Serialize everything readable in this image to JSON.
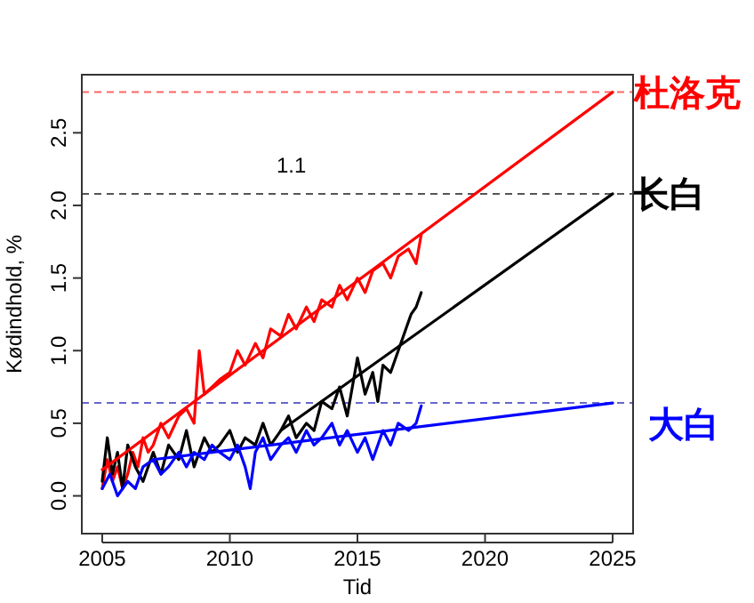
{
  "chart_data": {
    "type": "line",
    "xlabel": "Tid",
    "ylabel": "Kødindhold, %",
    "xlim": [
      2004.2,
      2025.8
    ],
    "ylim": [
      -0.26,
      2.9
    ],
    "xticks": [
      2005,
      2010,
      2015,
      2020,
      2025
    ],
    "yticks": [
      {
        "value": 0,
        "label": "0.0"
      },
      {
        "value": 0.5,
        "label": "0.5"
      },
      {
        "value": 1,
        "label": "1.0"
      },
      {
        "value": 1.5,
        "label": "1.5"
      },
      {
        "value": 2,
        "label": "2.0"
      },
      {
        "value": 2.5,
        "label": "2.5"
      }
    ],
    "grid": false,
    "line_style": "solid",
    "marker": "none",
    "annotations": [
      "1.1"
    ],
    "ref_lines": [
      {
        "axis": "y",
        "value": 2.78,
        "color": "#ff6666",
        "line_style": "dashed"
      },
      {
        "axis": "y",
        "value": 2.08,
        "color": "#555555",
        "line_style": "dashed"
      },
      {
        "axis": "y",
        "value": 0.64,
        "color": "#6666cc",
        "line_style": "dashed"
      }
    ],
    "series": [
      {
        "color": "#ff0000",
        "x": [
          2005,
          2005.2,
          2005.4,
          2005.6,
          2005.8,
          2006,
          2006.2,
          2006.4,
          2006.6,
          2006.8,
          2007,
          2007.3,
          2007.6,
          2008,
          2008.3,
          2008.6,
          2008.8,
          2009,
          2009.3,
          2009.6,
          2010,
          2010.3,
          2010.6,
          2011,
          2011.3,
          2011.6,
          2012,
          2012.3,
          2012.6,
          2013,
          2013.3,
          2013.6,
          2014,
          2014.3,
          2014.6,
          2015,
          2015.3,
          2015.6,
          2016,
          2016.3,
          2016.6,
          2017,
          2017.3,
          2017.5
        ],
        "values": [
          0.05,
          0.25,
          0.1,
          0.2,
          0.05,
          0.15,
          0.3,
          0.2,
          0.4,
          0.3,
          0.35,
          0.5,
          0.4,
          0.55,
          0.6,
          0.5,
          1.0,
          0.7,
          0.75,
          0.8,
          0.85,
          1.0,
          0.9,
          1.05,
          0.95,
          1.15,
          1.1,
          1.25,
          1.15,
          1.3,
          1.2,
          1.35,
          1.3,
          1.45,
          1.35,
          1.5,
          1.4,
          1.55,
          1.6,
          1.5,
          1.65,
          1.7,
          1.6,
          1.8
        ]
      },
      {
        "color": "#000000",
        "x": [
          2005,
          2005.2,
          2005.4,
          2005.6,
          2005.8,
          2006,
          2006.3,
          2006.6,
          2007,
          2007.3,
          2007.6,
          2008,
          2008.3,
          2008.6,
          2009,
          2009.3,
          2009.6,
          2010,
          2010.3,
          2010.6,
          2011,
          2011.3,
          2011.6,
          2012,
          2012.3,
          2012.6,
          2013,
          2013.3,
          2013.6,
          2014,
          2014.3,
          2014.6,
          2015,
          2015.3,
          2015.6,
          2015.8,
          2016,
          2016.3,
          2016.6,
          2016.9,
          2017.1,
          2017.3,
          2017.5
        ],
        "values": [
          0.1,
          0.4,
          0.15,
          0.3,
          0.05,
          0.35,
          0.2,
          0.1,
          0.3,
          0.15,
          0.35,
          0.25,
          0.45,
          0.2,
          0.4,
          0.3,
          0.35,
          0.45,
          0.3,
          0.4,
          0.35,
          0.5,
          0.35,
          0.45,
          0.55,
          0.4,
          0.5,
          0.45,
          0.65,
          0.6,
          0.75,
          0.55,
          0.95,
          0.7,
          0.85,
          0.65,
          0.9,
          0.85,
          1.0,
          1.15,
          1.25,
          1.3,
          1.4
        ]
      },
      {
        "color": "#0000ff",
        "x": [
          2005,
          2005.3,
          2005.6,
          2006,
          2006.3,
          2006.6,
          2007,
          2007.3,
          2007.6,
          2008,
          2008.3,
          2008.6,
          2009,
          2009.3,
          2009.6,
          2010,
          2010.3,
          2010.6,
          2010.8,
          2011,
          2011.3,
          2011.6,
          2012,
          2012.3,
          2012.6,
          2013,
          2013.3,
          2013.6,
          2014,
          2014.3,
          2014.6,
          2015,
          2015.3,
          2015.6,
          2016,
          2016.3,
          2016.6,
          2017,
          2017.3,
          2017.5
        ],
        "values": [
          0.05,
          0.15,
          0.0,
          0.1,
          0.05,
          0.2,
          0.25,
          0.15,
          0.2,
          0.3,
          0.2,
          0.3,
          0.25,
          0.35,
          0.3,
          0.25,
          0.35,
          0.2,
          0.05,
          0.3,
          0.4,
          0.25,
          0.35,
          0.4,
          0.3,
          0.45,
          0.35,
          0.4,
          0.5,
          0.35,
          0.45,
          0.3,
          0.4,
          0.25,
          0.45,
          0.35,
          0.5,
          0.45,
          0.5,
          0.62
        ]
      },
      {
        "name": "杜洛克",
        "color": "#ff0000",
        "x": [
          2005,
          2025
        ],
        "values": [
          0.18,
          2.78
        ]
      },
      {
        "name": "长白",
        "color": "#000000",
        "x": [
          2012,
          2025
        ],
        "values": [
          0.45,
          2.08
        ]
      },
      {
        "name": "大白",
        "color": "#0000ff",
        "x": [
          2007,
          2025
        ],
        "values": [
          0.25,
          0.64
        ]
      }
    ]
  }
}
